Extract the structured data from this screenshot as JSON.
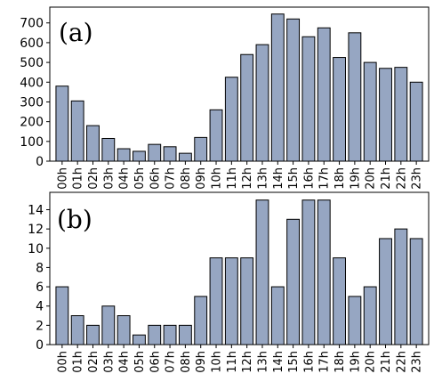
{
  "chart_data": [
    {
      "type": "bar",
      "panel_label": "(a)",
      "categories": [
        "00h",
        "01h",
        "02h",
        "03h",
        "04h",
        "05h",
        "06h",
        "07h",
        "08h",
        "09h",
        "10h",
        "11h",
        "12h",
        "13h",
        "14h",
        "15h",
        "16h",
        "17h",
        "18h",
        "19h",
        "20h",
        "21h",
        "22h",
        "23h"
      ],
      "values": [
        380,
        305,
        180,
        115,
        63,
        50,
        85,
        73,
        40,
        120,
        260,
        425,
        540,
        590,
        745,
        720,
        630,
        675,
        525,
        650,
        500,
        470,
        475,
        400
      ],
      "ylim": [
        0,
        780
      ],
      "yticks": [
        0,
        100,
        200,
        300,
        400,
        500,
        600,
        700
      ],
      "title": "",
      "xlabel": "",
      "ylabel": "",
      "grid": false,
      "bar_color": "#96a6c2",
      "edge_color": "#000000"
    },
    {
      "type": "bar",
      "panel_label": "(b)",
      "categories": [
        "00h",
        "01h",
        "02h",
        "03h",
        "04h",
        "05h",
        "06h",
        "07h",
        "08h",
        "09h",
        "10h",
        "11h",
        "12h",
        "13h",
        "14h",
        "15h",
        "16h",
        "17h",
        "18h",
        "19h",
        "20h",
        "21h",
        "22h",
        "23h"
      ],
      "values": [
        6,
        3,
        2,
        4,
        3,
        1,
        2,
        2,
        2,
        5,
        9,
        9,
        9,
        15,
        6,
        13,
        15,
        15,
        9,
        5,
        6,
        11,
        12,
        11
      ],
      "ylim": [
        0,
        15.8
      ],
      "yticks": [
        0,
        2,
        4,
        6,
        8,
        10,
        12,
        14
      ],
      "title": "",
      "xlabel": "",
      "ylabel": "",
      "grid": false,
      "bar_color": "#96a6c2",
      "edge_color": "#000000"
    }
  ]
}
